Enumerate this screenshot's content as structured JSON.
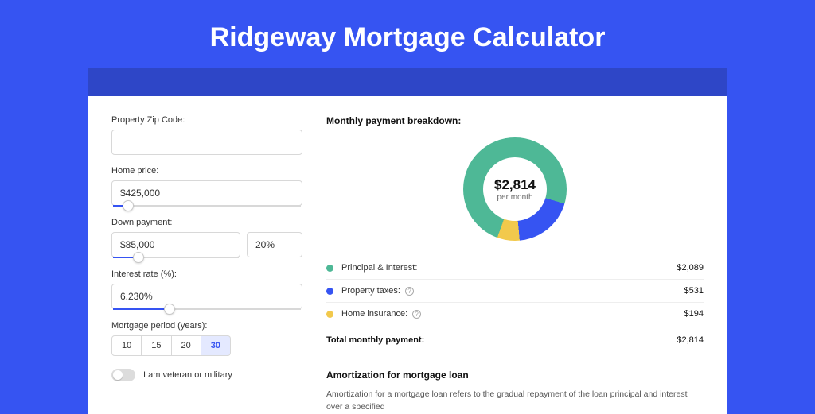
{
  "colors": {
    "page_bg": "#3654f2",
    "dark_bar": "#2e46c7",
    "card_bg": "#ffffff",
    "border": "#d8d8d8",
    "text": "#333333",
    "accent": "#3654f2"
  },
  "title": "Ridgeway Mortgage Calculator",
  "form": {
    "zip": {
      "label": "Property Zip Code:",
      "value": ""
    },
    "price": {
      "label": "Home price:",
      "value": "$425,000",
      "slider_pct": 8
    },
    "down": {
      "label": "Down payment:",
      "amount": "$85,000",
      "pct": "20%",
      "slider_pct": 20
    },
    "rate": {
      "label": "Interest rate (%):",
      "value": "6.230%",
      "slider_pct": 30
    },
    "period": {
      "label": "Mortgage period (years):",
      "options": [
        "10",
        "15",
        "20",
        "30"
      ],
      "active_index": 3
    },
    "veteran": {
      "label": "I am veteran or military",
      "on": false
    }
  },
  "breakdown": {
    "heading": "Monthly payment breakdown:",
    "donut": {
      "amount": "$2,814",
      "sub": "per month",
      "slices": [
        {
          "key": "pi",
          "label": "Principal & Interest:",
          "value": "$2,089",
          "color": "#4eb896",
          "pct": 74,
          "info": false
        },
        {
          "key": "tax",
          "label": "Property taxes:",
          "value": "$531",
          "color": "#3654f2",
          "pct": 19,
          "info": true
        },
        {
          "key": "ins",
          "label": "Home insurance:",
          "value": "$194",
          "color": "#f2c94c",
          "pct": 7,
          "info": true
        }
      ]
    },
    "total": {
      "label": "Total monthly payment:",
      "value": "$2,814"
    }
  },
  "amort": {
    "heading": "Amortization for mortgage loan",
    "text": "Amortization for a mortgage loan refers to the gradual repayment of the loan principal and interest over a specified"
  }
}
